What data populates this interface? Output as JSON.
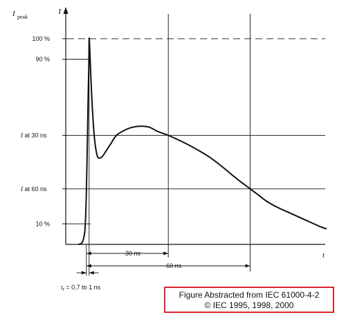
{
  "chart_data": {
    "type": "line",
    "title": "",
    "ylabel": "I",
    "ylabel_ref": "I",
    "ylabel_ref_sub": "peak",
    "xlabel": "t",
    "y_ticks": [
      {
        "label": "100 %",
        "value": 100
      },
      {
        "label": "90 %",
        "value": 90
      },
      {
        "label": "I at 30 ns",
        "prefix": "I",
        "text": " at 30 ns",
        "value": 53
      },
      {
        "label": "I at 60 ns",
        "prefix": "I",
        "text": " at 60 ns",
        "value": 27
      },
      {
        "label": "10 %",
        "value": 10
      }
    ],
    "x_markers": [
      {
        "label": "30 ns",
        "value": 30
      },
      {
        "label": "60 ns",
        "value": 60
      }
    ],
    "rise_time_label": "t",
    "rise_time_sub": "r",
    "rise_time_text": " = 0,7 to 1 ns",
    "xlim": [
      -3,
      88
    ],
    "ylim": [
      0,
      103
    ],
    "series": [
      {
        "x": [
          -3,
          -1.8,
          -1.2,
          -0.6,
          -0.3,
          0,
          0.3,
          0.6,
          0.9,
          1.0,
          1.2,
          1.6,
          2.2,
          3.0,
          4.0,
          5.0,
          6.0,
          7.0,
          9.0,
          11.0,
          14.0,
          17.0,
          20.0,
          23.0,
          26.0,
          28.0,
          30.0,
          35.0,
          40.0,
          45.0,
          50.0,
          55.0,
          58.0,
          60.0,
          63.0,
          66.0,
          70.0,
          75.0,
          80.0,
          85.0,
          88.0
        ],
        "y": [
          0,
          0.5,
          2,
          6,
          13,
          25,
          45,
          68,
          88,
          100,
          96,
          83,
          66,
          51,
          43,
          42,
          43,
          45,
          49,
          53,
          55.5,
          57,
          57.5,
          57,
          55,
          54,
          53,
          50,
          46.5,
          42.5,
          37.5,
          32,
          29,
          27,
          24,
          21,
          18,
          15,
          12,
          9,
          7.5
        ]
      }
    ],
    "grid": false
  },
  "copyright": {
    "line1": "Figure Abstracted from IEC 61000-4-2",
    "line2": "© IEC 1995, 1998, 2000"
  },
  "colors": {
    "curve": "#111111",
    "frame": "#d9262b"
  }
}
